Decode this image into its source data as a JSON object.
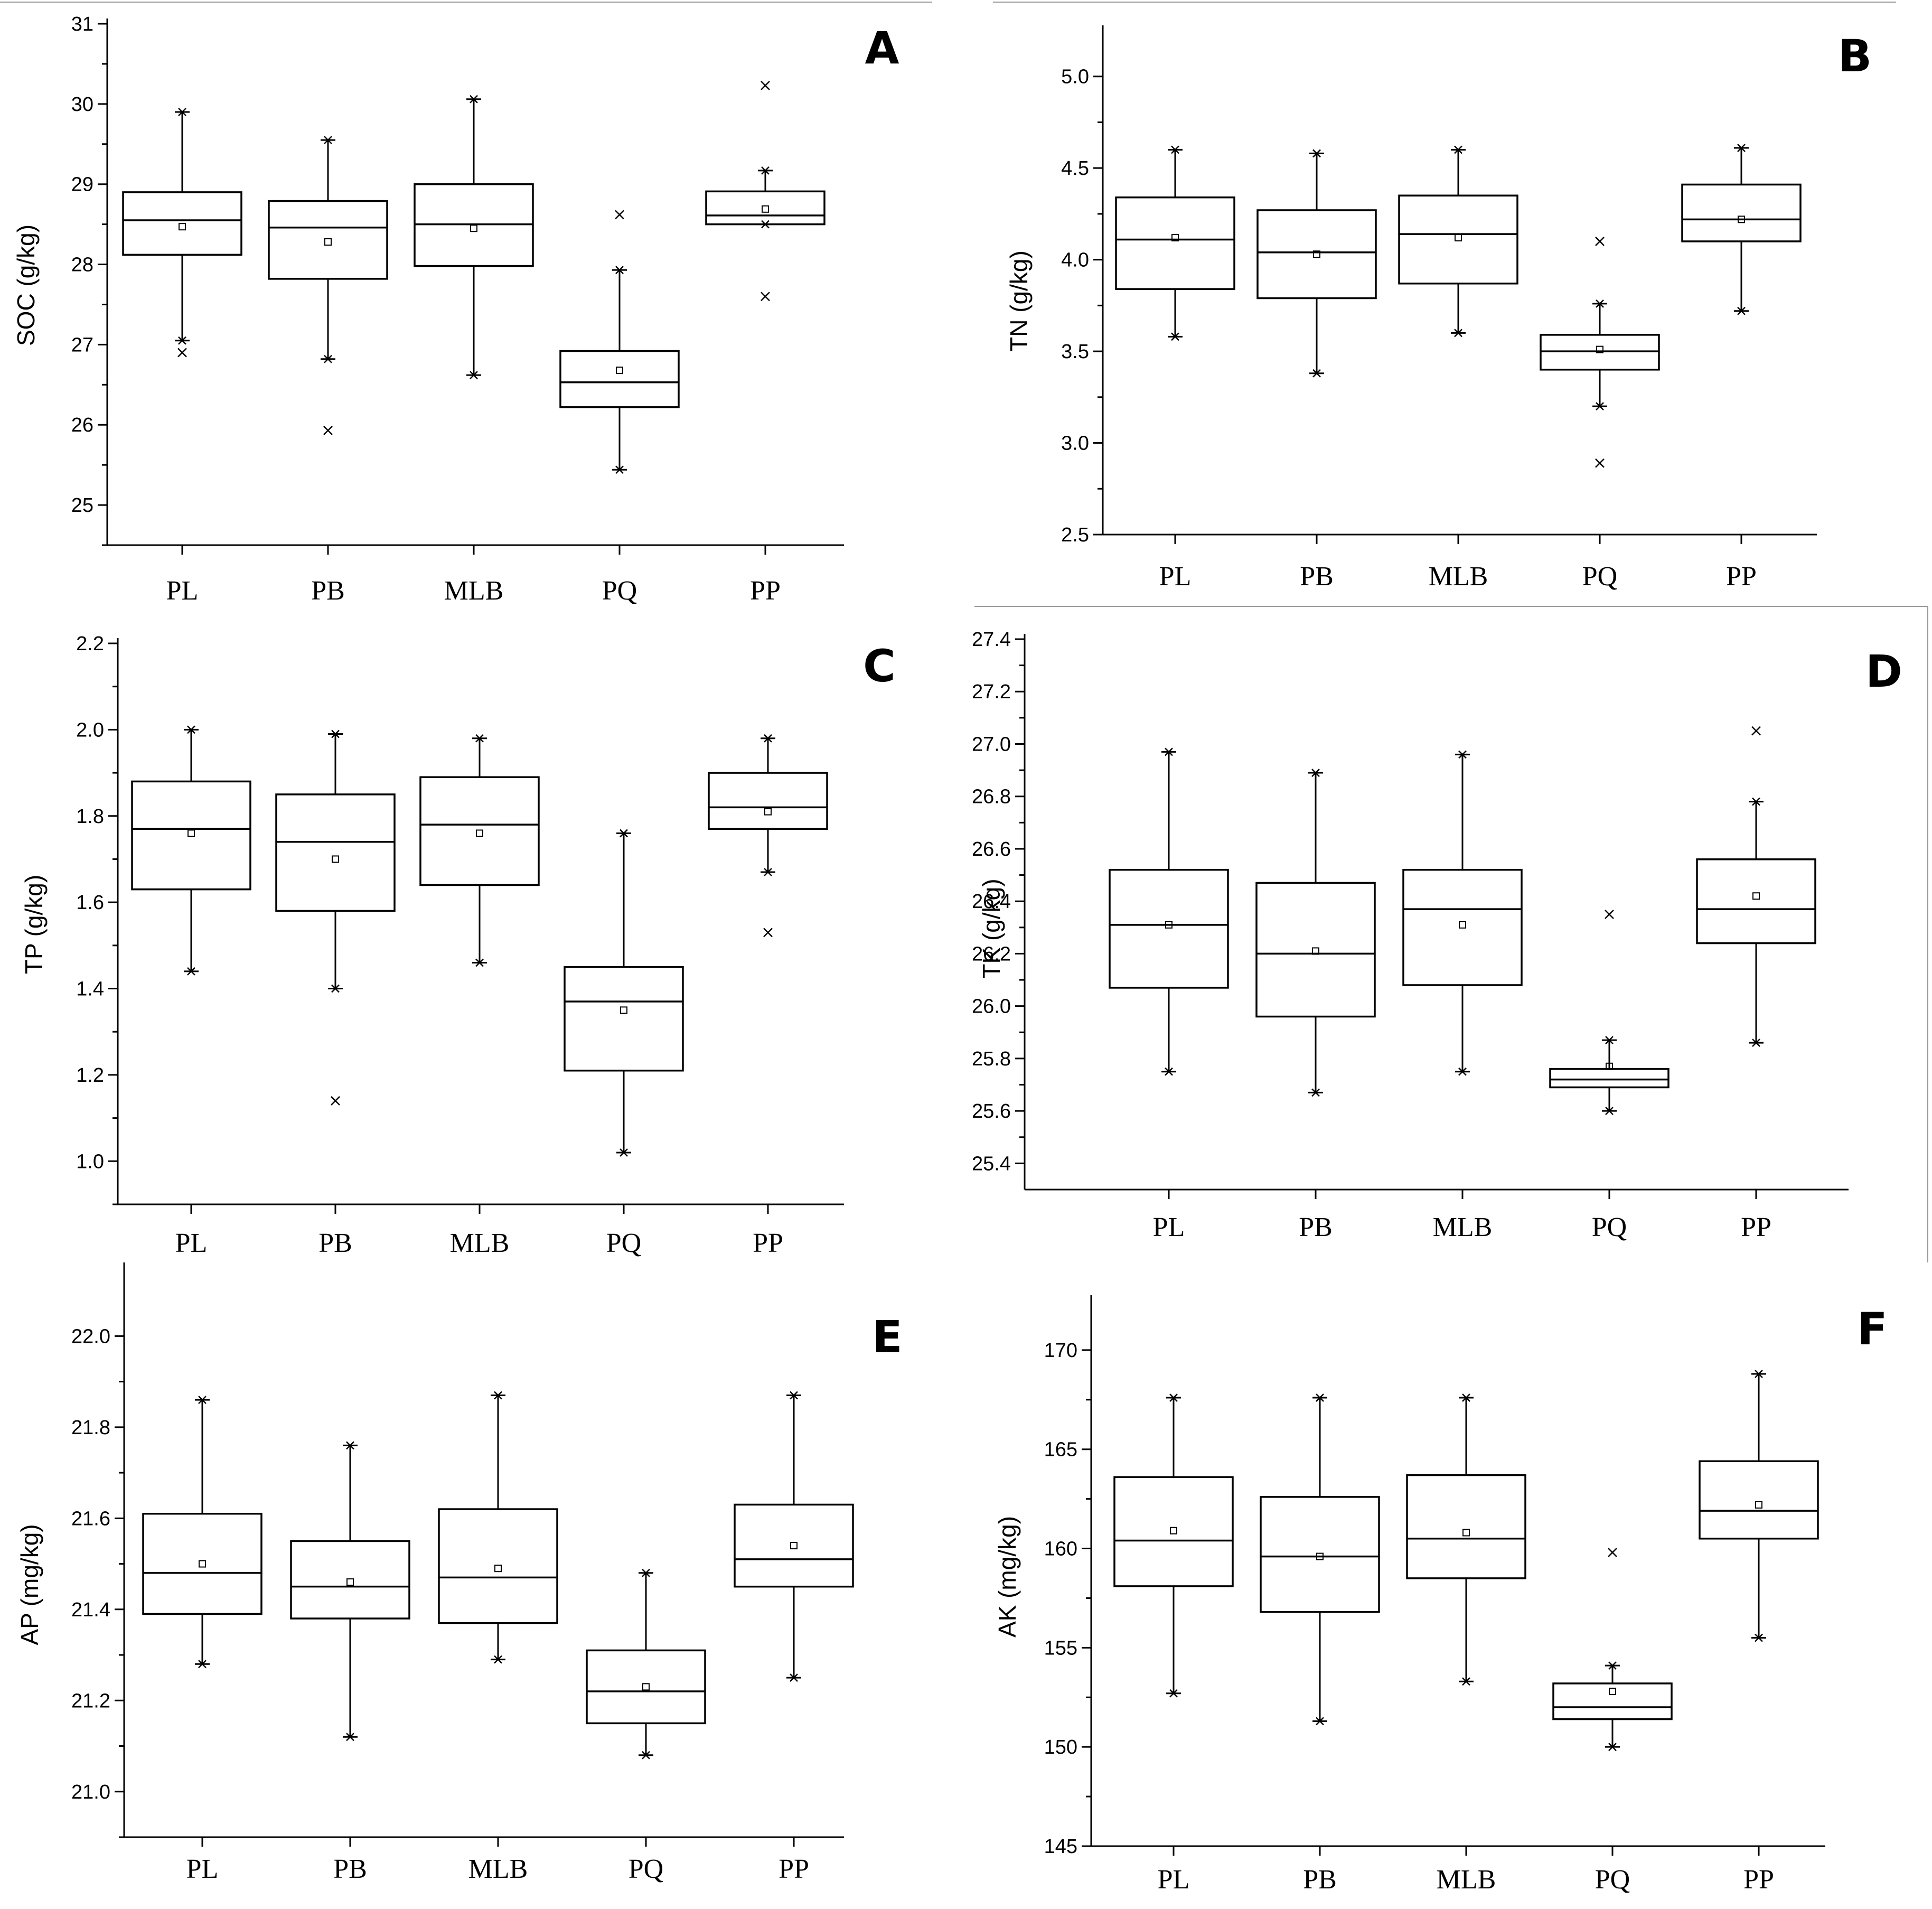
{
  "chart_data": [
    {
      "type": "box",
      "panel": "A",
      "ylabel": "SOC (g/kg)",
      "ylim": [
        24.5,
        31
      ],
      "yticks": [
        25,
        26,
        27,
        28,
        29,
        30,
        31
      ],
      "ytick_labels": [
        "25",
        "26",
        "27",
        "28",
        "29",
        "30",
        "31"
      ],
      "categories": [
        "PL",
        "PB",
        "MLB",
        "PQ",
        "PP"
      ],
      "boxes": [
        {
          "min": 27.05,
          "q1": 28.12,
          "median": 28.55,
          "q3": 28.9,
          "max": 29.9,
          "mean": 28.47,
          "outliers": [
            26.9
          ]
        },
        {
          "min": 26.82,
          "q1": 27.82,
          "median": 28.46,
          "q3": 28.79,
          "max": 29.55,
          "mean": 28.28,
          "outliers": [
            25.93
          ]
        },
        {
          "min": 26.62,
          "q1": 27.98,
          "median": 28.5,
          "q3": 29.0,
          "max": 30.06,
          "mean": 28.45,
          "outliers": []
        },
        {
          "min": 25.44,
          "q1": 26.22,
          "median": 26.53,
          "q3": 26.92,
          "max": 27.93,
          "mean": 26.68,
          "outliers": [
            28.62
          ]
        },
        {
          "min": 28.5,
          "q1": 28.5,
          "median": 28.61,
          "q3": 28.91,
          "max": 29.17,
          "mean": 28.69,
          "outliers": [
            30.23,
            27.6
          ]
        }
      ]
    },
    {
      "type": "box",
      "panel": "B",
      "ylabel": "TN (g/kg)",
      "ylim": [
        2.5,
        5.25
      ],
      "yticks": [
        2.5,
        3.0,
        3.5,
        4.0,
        4.5,
        5.0
      ],
      "ytick_labels": [
        "2.5",
        "3.0",
        "3.5",
        "4.0",
        "4.5",
        "5.0"
      ],
      "categories": [
        "PL",
        "PB",
        "MLB",
        "PQ",
        "PP"
      ],
      "boxes": [
        {
          "min": 3.58,
          "q1": 3.84,
          "median": 4.11,
          "q3": 4.34,
          "max": 4.6,
          "mean": 4.12,
          "outliers": []
        },
        {
          "min": 3.38,
          "q1": 3.79,
          "median": 4.04,
          "q3": 4.27,
          "max": 4.58,
          "mean": 4.03,
          "outliers": []
        },
        {
          "min": 3.6,
          "q1": 3.87,
          "median": 4.14,
          "q3": 4.35,
          "max": 4.6,
          "mean": 4.12,
          "outliers": []
        },
        {
          "min": 3.2,
          "q1": 3.4,
          "median": 3.5,
          "q3": 3.59,
          "max": 3.76,
          "mean": 3.51,
          "outliers": [
            4.1,
            2.89
          ]
        },
        {
          "min": 3.72,
          "q1": 4.1,
          "median": 4.22,
          "q3": 4.41,
          "max": 4.61,
          "mean": 4.22,
          "outliers": []
        }
      ]
    },
    {
      "type": "box",
      "panel": "C",
      "ylabel": "TP (g/kg)",
      "ylim": [
        0.9,
        2.2
      ],
      "yticks": [
        1.0,
        1.2,
        1.4,
        1.6,
        1.8,
        2.0,
        2.2
      ],
      "ytick_labels": [
        "1.0",
        "1.2",
        "1.4",
        "1.6",
        "1.8",
        "2.0",
        "2.2"
      ],
      "categories": [
        "PL",
        "PB",
        "MLB",
        "PQ",
        "PP"
      ],
      "boxes": [
        {
          "min": 1.44,
          "q1": 1.63,
          "median": 1.77,
          "q3": 1.88,
          "max": 2.0,
          "mean": 1.76,
          "outliers": []
        },
        {
          "min": 1.4,
          "q1": 1.58,
          "median": 1.74,
          "q3": 1.85,
          "max": 1.99,
          "mean": 1.7,
          "outliers": [
            1.14
          ]
        },
        {
          "min": 1.46,
          "q1": 1.64,
          "median": 1.78,
          "q3": 1.89,
          "max": 1.98,
          "mean": 1.76,
          "outliers": []
        },
        {
          "min": 1.02,
          "q1": 1.21,
          "median": 1.37,
          "q3": 1.45,
          "max": 1.76,
          "mean": 1.35,
          "outliers": []
        },
        {
          "min": 1.67,
          "q1": 1.77,
          "median": 1.82,
          "q3": 1.9,
          "max": 1.98,
          "mean": 1.81,
          "outliers": [
            1.53
          ]
        }
      ]
    },
    {
      "type": "box",
      "panel": "D",
      "ylabel": "TK (g/kg)",
      "ylim": [
        25.3,
        27.4
      ],
      "yticks": [
        25.4,
        25.6,
        25.8,
        26.0,
        26.2,
        26.4,
        26.6,
        26.8,
        27.0,
        27.2,
        27.4
      ],
      "ytick_labels": [
        "25.4",
        "25.6",
        "25.8",
        "26.0",
        "26.2",
        "26.4",
        "26.6",
        "26.8",
        "27.0",
        "27.2",
        "27.4"
      ],
      "categories": [
        "PL",
        "PB",
        "MLB",
        "PQ",
        "PP"
      ],
      "boxes": [
        {
          "min": 25.75,
          "q1": 26.07,
          "median": 26.31,
          "q3": 26.52,
          "max": 26.97,
          "mean": 26.31,
          "outliers": []
        },
        {
          "min": 25.67,
          "q1": 25.96,
          "median": 26.2,
          "q3": 26.47,
          "max": 26.89,
          "mean": 26.21,
          "outliers": []
        },
        {
          "min": 25.75,
          "q1": 26.08,
          "median": 26.37,
          "q3": 26.52,
          "max": 26.96,
          "mean": 26.31,
          "outliers": []
        },
        {
          "min": 25.6,
          "q1": 25.69,
          "median": 25.72,
          "q3": 25.76,
          "max": 25.87,
          "mean": 25.77,
          "outliers": [
            26.35
          ]
        },
        {
          "min": 25.86,
          "q1": 26.24,
          "median": 26.37,
          "q3": 26.56,
          "max": 26.78,
          "mean": 26.42,
          "outliers": [
            27.05
          ]
        }
      ]
    },
    {
      "type": "box",
      "panel": "E",
      "ylabel": "AP (mg/kg)",
      "ylim": [
        20.9,
        22.15
      ],
      "yticks": [
        21.0,
        21.2,
        21.4,
        21.6,
        21.8,
        22.0
      ],
      "ytick_labels": [
        "21.0",
        "21.2",
        "21.4",
        "21.6",
        "21.8",
        "22.0"
      ],
      "categories": [
        "PL",
        "PB",
        "MLB",
        "PQ",
        "PP"
      ],
      "boxes": [
        {
          "min": 21.28,
          "q1": 21.39,
          "median": 21.48,
          "q3": 21.61,
          "max": 21.86,
          "mean": 21.5,
          "outliers": []
        },
        {
          "min": 21.12,
          "q1": 21.38,
          "median": 21.45,
          "q3": 21.55,
          "max": 21.76,
          "mean": 21.46,
          "outliers": []
        },
        {
          "min": 21.29,
          "q1": 21.37,
          "median": 21.47,
          "q3": 21.62,
          "max": 21.87,
          "mean": 21.49,
          "outliers": []
        },
        {
          "min": 21.08,
          "q1": 21.15,
          "median": 21.22,
          "q3": 21.31,
          "max": 21.48,
          "mean": 21.23,
          "outliers": []
        },
        {
          "min": 21.25,
          "q1": 21.45,
          "median": 21.51,
          "q3": 21.63,
          "max": 21.87,
          "mean": 21.54,
          "outliers": []
        }
      ]
    },
    {
      "type": "box",
      "panel": "F",
      "ylabel": "AK (mg/kg)",
      "ylim": [
        145,
        172.5
      ],
      "yticks": [
        145,
        150,
        155,
        160,
        165,
        170
      ],
      "ytick_labels": [
        "145",
        "150",
        "155",
        "160",
        "165",
        "170"
      ],
      "categories": [
        "PL",
        "PB",
        "MLB",
        "PQ",
        "PP"
      ],
      "boxes": [
        {
          "min": 152.7,
          "q1": 158.1,
          "median": 160.4,
          "q3": 163.6,
          "max": 167.6,
          "mean": 160.9,
          "outliers": []
        },
        {
          "min": 151.3,
          "q1": 156.8,
          "median": 159.6,
          "q3": 162.6,
          "max": 167.6,
          "mean": 159.6,
          "outliers": []
        },
        {
          "min": 153.3,
          "q1": 158.5,
          "median": 160.5,
          "q3": 163.7,
          "max": 167.6,
          "mean": 160.8,
          "outliers": []
        },
        {
          "min": 150.0,
          "q1": 151.4,
          "median": 152.0,
          "q3": 153.2,
          "max": 154.1,
          "mean": 152.8,
          "outliers": [
            159.8
          ]
        },
        {
          "min": 155.5,
          "q1": 160.5,
          "median": 161.9,
          "q3": 164.4,
          "max": 168.8,
          "mean": 162.2,
          "outliers": []
        }
      ]
    }
  ]
}
